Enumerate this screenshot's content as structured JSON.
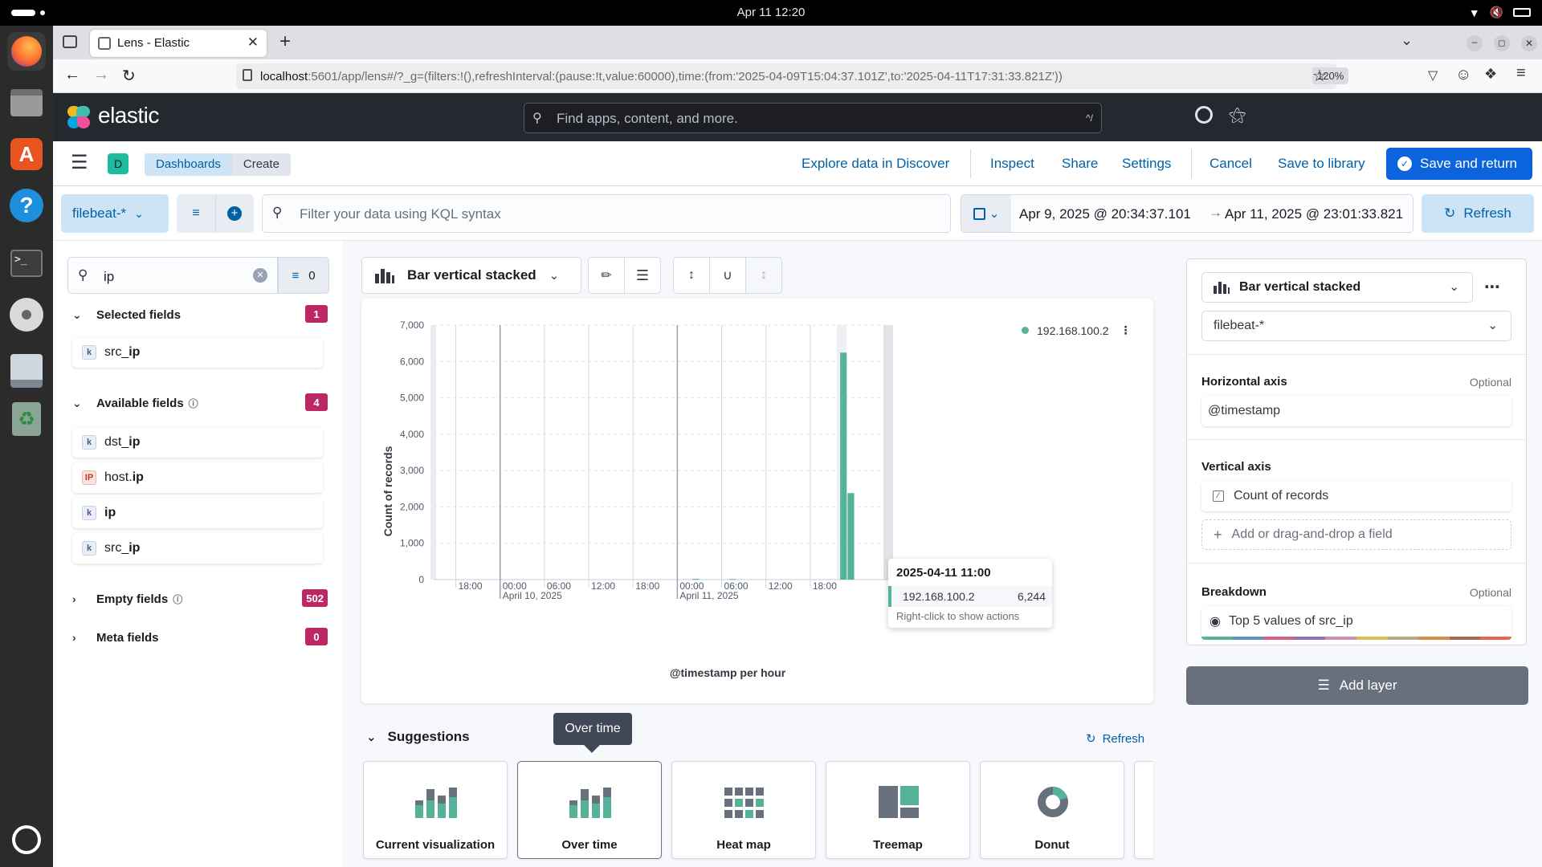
{
  "os": {
    "clock": "Apr 11  12:20"
  },
  "browser": {
    "tab_title": "Lens - Elastic",
    "url_host": "localhost",
    "url_rest": ":5601/app/lens#/?_g=(filters:!(),refreshInterval:(pause:!t,value:60000),time:(from:'2025-04-09T15:04:37.101Z',to:'2025-04-11T17:31:33.821Z'))",
    "zoom": "120%"
  },
  "kibana": {
    "brand": "elastic",
    "search_placeholder": "Find apps, content, and more.",
    "search_shortcut": "^/",
    "space_initial": "D",
    "breadcrumbs": [
      "Dashboards",
      "Create"
    ],
    "actions": {
      "explore": "Explore data in Discover",
      "inspect": "Inspect",
      "share": "Share",
      "settings": "Settings",
      "cancel": "Cancel",
      "save_library": "Save to library",
      "save_return": "Save and return"
    }
  },
  "query": {
    "data_view": "filebeat-*",
    "kql_placeholder": "Filter your data using KQL syntax",
    "time_from": "Apr 9, 2025 @ 20:34:37.101",
    "time_to": "Apr 11, 2025 @ 23:01:33.821",
    "refresh": "Refresh"
  },
  "fields": {
    "search_value": "ip",
    "filter_count": "0",
    "selected": {
      "title": "Selected fields",
      "count": "1",
      "items": [
        {
          "pre": "src_",
          "match": "ip",
          "type": "k"
        }
      ]
    },
    "available": {
      "title": "Available fields",
      "count": "4",
      "items": [
        {
          "pre": "dst_",
          "match": "ip",
          "type": "k"
        },
        {
          "pre": "host.",
          "match": "ip",
          "type": "ip"
        },
        {
          "pre": "",
          "match": "ip",
          "type": "k"
        },
        {
          "pre": "src_",
          "match": "ip",
          "type": "k"
        }
      ]
    },
    "empty": {
      "title": "Empty fields",
      "count": "502"
    },
    "meta": {
      "title": "Meta fields",
      "count": "0"
    }
  },
  "toolbar": {
    "chart_type": "Bar vertical stacked"
  },
  "chart_data": {
    "type": "bar",
    "ylabel": "Count of records",
    "xlabel": "@timestamp per hour",
    "ylim": [
      0,
      7000
    ],
    "yticks": [
      "7,000",
      "6,000",
      "5,000",
      "4,000",
      "3,000",
      "2,000",
      "1,000",
      "0"
    ],
    "xticks": [
      {
        "label": "18:00",
        "sub": ""
      },
      {
        "label": "00:00",
        "sub": "April 10, 2025"
      },
      {
        "label": "06:00",
        "sub": ""
      },
      {
        "label": "12:00",
        "sub": ""
      },
      {
        "label": "18:00",
        "sub": ""
      },
      {
        "label": "00:00",
        "sub": "April 11, 2025"
      },
      {
        "label": "06:00",
        "sub": ""
      },
      {
        "label": "12:00",
        "sub": ""
      },
      {
        "label": "18:00",
        "sub": ""
      }
    ],
    "x_start": "2025-04-09 15:00",
    "series": [
      {
        "name": "192.168.100.2",
        "color": "#54b399",
        "bars": [
          {
            "hour": 35,
            "value": 20
          },
          {
            "hour": 40,
            "value": 15
          },
          {
            "hour": 55,
            "value": 6244
          },
          {
            "hour": 56,
            "value": 2380
          }
        ]
      }
    ],
    "legend_position": "top-right",
    "tooltip": {
      "title": "2025-04-11 11:00",
      "series": "192.168.100.2",
      "value": "6,244",
      "hint": "Right-click to show actions"
    }
  },
  "suggestions": {
    "title": "Suggestions",
    "refresh": "Refresh",
    "tooltip": "Over time",
    "items": [
      "Current visualization",
      "Over time",
      "Heat map",
      "Treemap",
      "Donut"
    ]
  },
  "config": {
    "chart_type": "Bar vertical stacked",
    "data_view": "filebeat-*",
    "horizontal": {
      "title": "Horizontal axis",
      "optional": "Optional",
      "value": "@timestamp"
    },
    "vertical": {
      "title": "Vertical axis",
      "value": "Count of records",
      "add": "Add or drag-and-drop a field"
    },
    "breakdown": {
      "title": "Breakdown",
      "optional": "Optional",
      "value": "Top 5 values of src_ip"
    },
    "add_layer": "Add layer",
    "palette": [
      "#54b399",
      "#6092c0",
      "#d36086",
      "#9170b8",
      "#ca8eae",
      "#d6bf57",
      "#b9a888",
      "#da8b45",
      "#aa6556",
      "#e7664c"
    ]
  }
}
